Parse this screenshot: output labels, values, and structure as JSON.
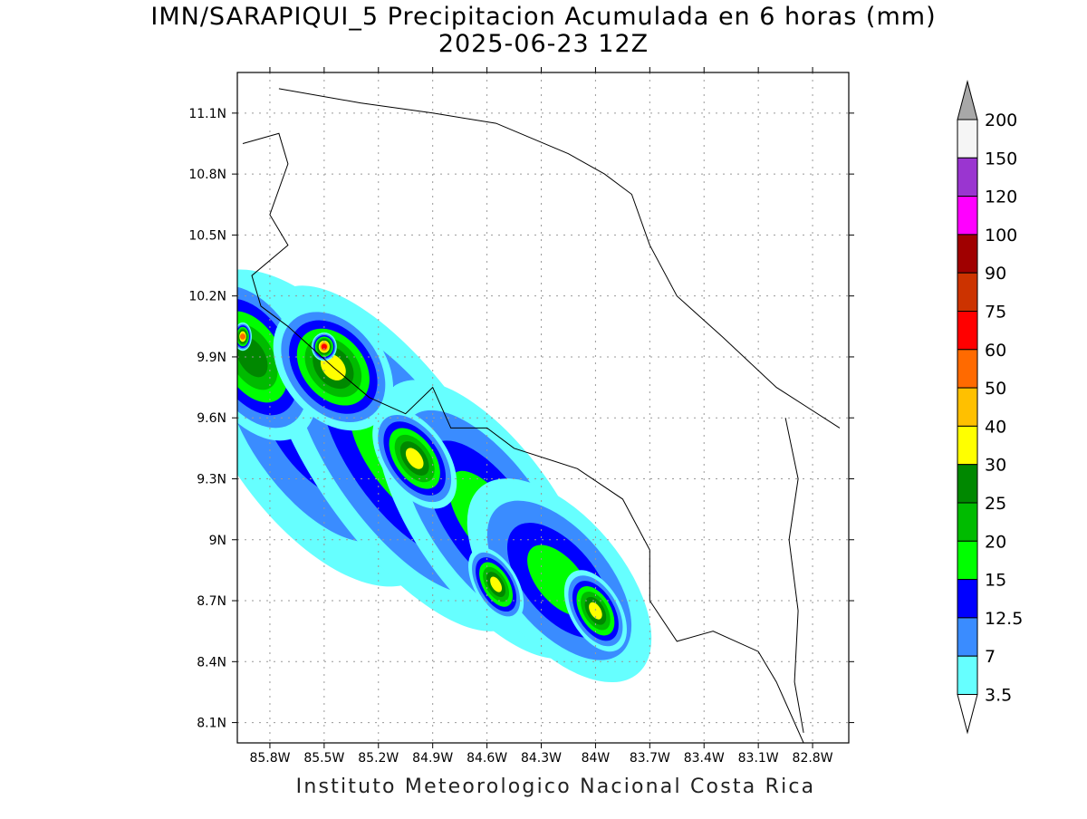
{
  "title": "IMN/SARAPIQUI_5 Precipitacion Acumulada en 6 horas (mm)",
  "subtitle": "2025-06-23 12Z",
  "footer": "Instituto Meteorologico Nacional Costa Rica",
  "axes": {
    "lon_labels": [
      "85.8W",
      "85.5W",
      "85.2W",
      "84.9W",
      "84.6W",
      "84.3W",
      "84W",
      "83.7W",
      "83.4W",
      "83.1W",
      "82.8W"
    ],
    "lon_values": [
      -85.8,
      -85.5,
      -85.2,
      -84.9,
      -84.6,
      -84.3,
      -84.0,
      -83.7,
      -83.4,
      -83.1,
      -82.8
    ],
    "lat_labels": [
      "11.1N",
      "10.8N",
      "10.5N",
      "10.2N",
      "9.9N",
      "9.6N",
      "9.3N",
      "9N",
      "8.7N",
      "8.4N",
      "8.1N"
    ],
    "lat_values": [
      11.1,
      10.8,
      10.5,
      10.2,
      9.9,
      9.6,
      9.3,
      9.0,
      8.7,
      8.4,
      8.1
    ],
    "lon_range": [
      -85.98,
      -82.6
    ],
    "lat_range": [
      8.0,
      11.3
    ],
    "grid": true
  },
  "colorbar": {
    "labels": [
      "200",
      "150",
      "120",
      "100",
      "90",
      "75",
      "60",
      "50",
      "40",
      "30",
      "25",
      "20",
      "15",
      "12.5",
      "7",
      "3.5"
    ],
    "colors": [
      "#f5f5f5",
      "#9a35d0",
      "#ff00ff",
      "#a00000",
      "#cc3300",
      "#ff0000",
      "#ff6a00",
      "#ffc000",
      "#ffff00",
      "#008800",
      "#00bb00",
      "#00ff00",
      "#0000ff",
      "#3a8cff",
      "#66ffff"
    ],
    "top_arrow_color": "#a8a8a8",
    "bottom_arrow_color": "#ffffff"
  },
  "precip_blobs": [
    {
      "lon": -85.55,
      "lat": 9.55,
      "rx": 0.5,
      "ry": 0.9,
      "rot": -35,
      "level": 2
    },
    {
      "lon": -85.1,
      "lat": 9.4,
      "rx": 0.45,
      "ry": 1.0,
      "rot": -35,
      "level": 3
    },
    {
      "lon": -84.6,
      "lat": 9.1,
      "rx": 0.4,
      "ry": 0.8,
      "rot": -35,
      "level": 3
    },
    {
      "lon": -84.2,
      "lat": 8.8,
      "rx": 0.35,
      "ry": 0.6,
      "rot": -40,
      "level": 3
    },
    {
      "lon": -85.9,
      "lat": 9.9,
      "rx": 0.3,
      "ry": 0.45,
      "rot": -30,
      "level": 5
    },
    {
      "lon": -85.45,
      "lat": 9.85,
      "rx": 0.28,
      "ry": 0.35,
      "rot": -40,
      "level": 6
    },
    {
      "lon": -85.0,
      "lat": 9.4,
      "rx": 0.18,
      "ry": 0.28,
      "rot": -35,
      "level": 6
    },
    {
      "lon": -84.55,
      "lat": 8.78,
      "rx": 0.12,
      "ry": 0.2,
      "rot": -30,
      "level": 6
    },
    {
      "lon": -84.0,
      "lat": 8.65,
      "rx": 0.14,
      "ry": 0.22,
      "rot": -30,
      "level": 6
    },
    {
      "lon": -85.5,
      "lat": 9.95,
      "rx": 0.07,
      "ry": 0.07,
      "rot": 0,
      "level": 9
    },
    {
      "lon": -85.95,
      "lat": 10.0,
      "rx": 0.05,
      "ry": 0.07,
      "rot": 0,
      "level": 8
    }
  ]
}
